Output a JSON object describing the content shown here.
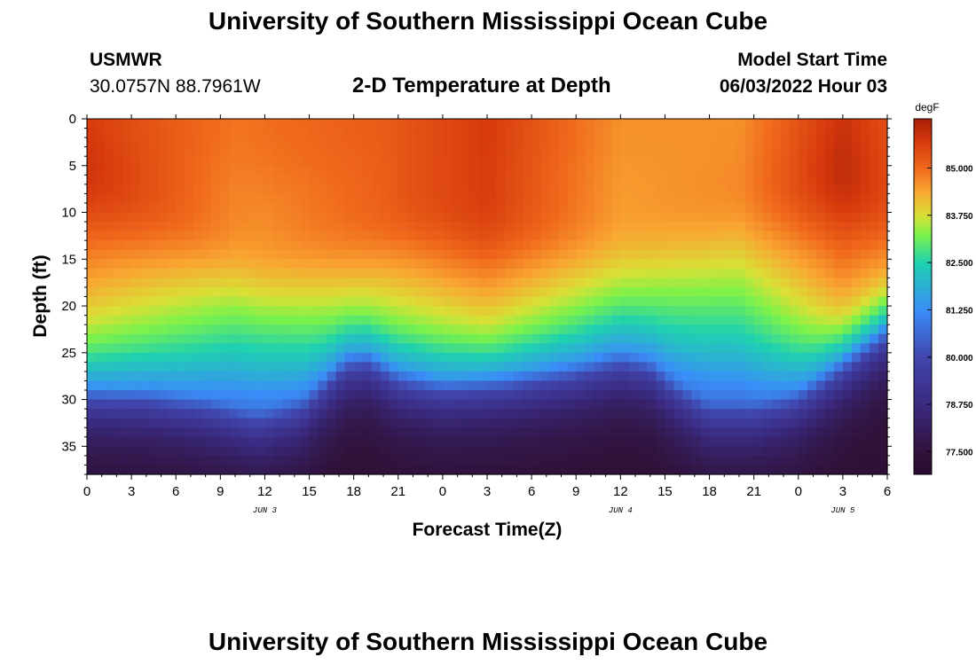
{
  "page": {
    "title": "University of Southern Mississippi Ocean Cube",
    "station_name": "USMWR",
    "coordinates": "30.0757N  88.7961W",
    "subtitle": "2-D Temperature at Depth",
    "model_start_label": "Model Start Time",
    "model_start_value": "06/03/2022 Hour 03",
    "footer_title": "University of Southern Mississippi Ocean Cube"
  },
  "chart_data": {
    "type": "heatmap",
    "title": "2-D Temperature at Depth",
    "xlabel": "Forecast Time(Z)",
    "ylabel": "Depth (ft)",
    "x_range_hours": [
      0,
      54
    ],
    "y_range_ft": [
      0,
      38
    ],
    "x_tick_labels": [
      "0",
      "3",
      "6",
      "9",
      "12",
      "15",
      "18",
      "21",
      "0",
      "3",
      "6",
      "9",
      "12",
      "15",
      "18",
      "21",
      "0",
      "3",
      "6"
    ],
    "y_ticks": [
      0,
      5,
      10,
      15,
      20,
      25,
      30,
      35
    ],
    "date_labels": [
      {
        "text": "JUN 3",
        "hour": 12
      },
      {
        "text": "JUN 4",
        "hour": 36
      },
      {
        "text": "JUN 5",
        "hour": 51
      }
    ],
    "colorbar": {
      "unit": "degF",
      "min": 76.9,
      "max": 86.3,
      "tick_values": [
        77.5,
        78.75,
        80.0,
        81.25,
        82.5,
        83.75,
        85.0
      ],
      "tick_labels": [
        "77.500",
        "78.750",
        "80.000",
        "81.250",
        "82.500",
        "83.750",
        "85.000"
      ],
      "color_stops": [
        {
          "value": 76.9,
          "color": "#2a0a30"
        },
        {
          "value": 77.5,
          "color": "#30123b"
        },
        {
          "value": 78.75,
          "color": "#3a2a80"
        },
        {
          "value": 80.0,
          "color": "#4145ab"
        },
        {
          "value": 81.25,
          "color": "#3a8df8"
        },
        {
          "value": 82.5,
          "color": "#1fd1b0"
        },
        {
          "value": 83.25,
          "color": "#7cf24a"
        },
        {
          "value": 83.75,
          "color": "#d9e036"
        },
        {
          "value": 84.4,
          "color": "#f9a532"
        },
        {
          "value": 85.0,
          "color": "#f06a1c"
        },
        {
          "value": 85.7,
          "color": "#d73a0d"
        },
        {
          "value": 86.3,
          "color": "#a8200a"
        }
      ]
    },
    "surface_temp_degF_by_hour": [
      {
        "hour": 0,
        "value": 85.6
      },
      {
        "hour": 10,
        "value": 84.9
      },
      {
        "hour": 20,
        "value": 85.2
      },
      {
        "hour": 27,
        "value": 85.7
      },
      {
        "hour": 36,
        "value": 84.6
      },
      {
        "hour": 44,
        "value": 84.6
      },
      {
        "hour": 51,
        "value": 85.8
      },
      {
        "hour": 54,
        "value": 85.4
      }
    ],
    "thermocline_depth_ft_by_hour": [
      {
        "hour": 0,
        "value": 28.3
      },
      {
        "hour": 4,
        "value": 28.6
      },
      {
        "hour": 8,
        "value": 29.6
      },
      {
        "hour": 11.5,
        "value": 31.1
      },
      {
        "hour": 14.5,
        "value": 29.6
      },
      {
        "hour": 17.5,
        "value": 24.8
      },
      {
        "hour": 19,
        "value": 24.5
      },
      {
        "hour": 21,
        "value": 26.5
      },
      {
        "hour": 24,
        "value": 27.5
      },
      {
        "hour": 28,
        "value": 27.0
      },
      {
        "hour": 33,
        "value": 25.8
      },
      {
        "hour": 36,
        "value": 24.6
      },
      {
        "hour": 38,
        "value": 25.3
      },
      {
        "hour": 40,
        "value": 28.0
      },
      {
        "hour": 42,
        "value": 30.1
      },
      {
        "hour": 45,
        "value": 30.1
      },
      {
        "hour": 48,
        "value": 28.6
      },
      {
        "hour": 51,
        "value": 25.0
      },
      {
        "hour": 54,
        "value": 21.4
      }
    ],
    "warm_core_depth_ft_by_hour": [
      {
        "hour": 0,
        "value": 7.0
      },
      {
        "hour": 12,
        "value": 15.5
      },
      {
        "hour": 22,
        "value": 11.0
      },
      {
        "hour": 36,
        "value": 13.0
      },
      {
        "hour": 51,
        "value": 7.0
      },
      {
        "hour": 54,
        "value": 10.0
      }
    ],
    "bottom_temp_degF": 77.2
  }
}
